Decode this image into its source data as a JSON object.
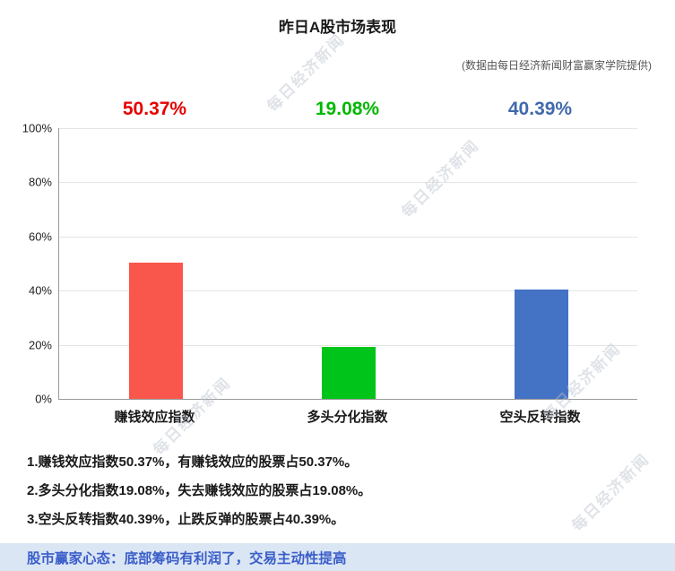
{
  "page": {
    "title": "昨日A股市场表现",
    "source_note": "(数据由每日经济新闻财富赢家学院提供)",
    "watermark": "每日经济新闻"
  },
  "chart_data": {
    "type": "bar",
    "title": "昨日A股市场表现",
    "categories": [
      "赚钱效应指数",
      "多头分化指数",
      "空头反转指数"
    ],
    "values": [
      50.37,
      19.08,
      40.39
    ],
    "value_labels": [
      "50.37%",
      "19.08%",
      "40.39%"
    ],
    "bar_colors": [
      "#f9574c",
      "#00c419",
      "#4472c4"
    ],
    "label_colors": [
      "#e60000",
      "#00b800",
      "#4169ab"
    ],
    "ylim": [
      0,
      100
    ],
    "yticks": [
      "100%",
      "80%",
      "60%",
      "40%",
      "20%",
      "0%"
    ],
    "grid": true,
    "legend_position": "none",
    "xlabel": "",
    "ylabel": ""
  },
  "notes": [
    "1.赚钱效应指数50.37%，有赚钱效应的股票占50.37%。",
    "2.多头分化指数19.08%，失去赚钱效应的股票占19.08%。",
    "3.空头反转指数40.39%，止跌反弹的股票占40.39%。"
  ],
  "footer": {
    "text": "股市赢家心态：底部筹码有利润了，交易主动性提高",
    "text_color": "#3a5ec9",
    "background": "#dbe6f4"
  }
}
